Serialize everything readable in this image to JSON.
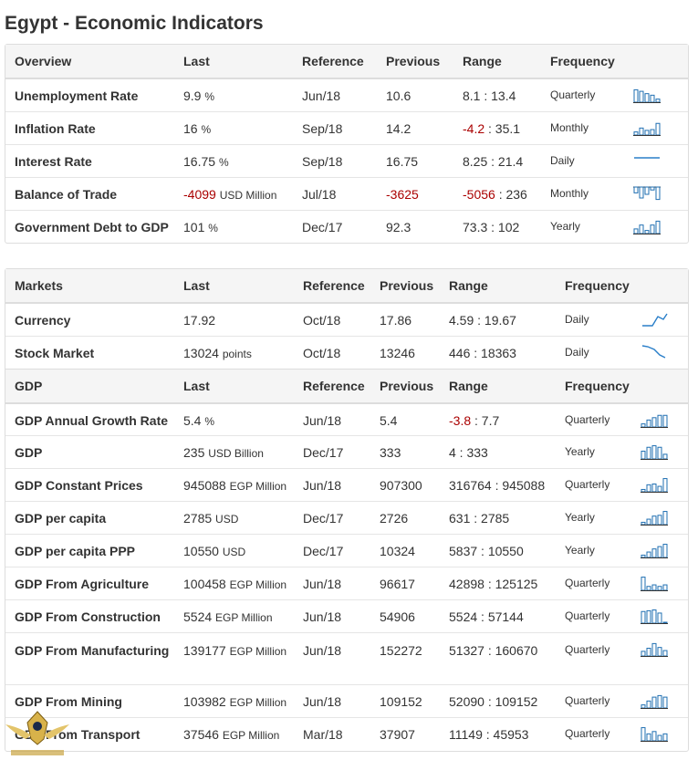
{
  "page_title": "Egypt - Economic Indicators",
  "overview": {
    "headers": {
      "c1": "Overview",
      "c2": "Last",
      "c3": "Reference",
      "c4": "Previous",
      "c5": "Range",
      "c6": "Frequency"
    },
    "rows": [
      {
        "name": "Unemployment Rate",
        "last": "9.9",
        "unit": "%",
        "ref": "Jun/18",
        "prev": "10.6",
        "range_low": "8.1",
        "range_high": "13.4",
        "freq": "Quarterly",
        "spark": "bars",
        "spark_values": [
          0.8,
          0.7,
          0.55,
          0.45,
          0.2
        ]
      },
      {
        "name": "Inflation Rate",
        "last": "16",
        "unit": "%",
        "ref": "Sep/18",
        "prev": "14.2",
        "range_low": "-4.2",
        "range_high": "35.1",
        "freq": "Monthly",
        "spark": "bars",
        "spark_values": [
          0.2,
          0.45,
          0.3,
          0.35,
          0.75
        ]
      },
      {
        "name": "Interest Rate",
        "last": "16.75",
        "unit": "%",
        "ref": "Sep/18",
        "prev": "16.75",
        "range_low": "8.25",
        "range_high": "21.4",
        "freq": "Daily",
        "spark": "flat"
      },
      {
        "name": "Balance of Trade",
        "last": "-4099",
        "last_neg": true,
        "unit": "USD Million",
        "ref": "Jul/18",
        "prev": "-3625",
        "prev_neg": true,
        "range_low": "-5056",
        "range_high": "236",
        "freq": "Monthly",
        "spark": "negbars",
        "spark_values": [
          0.4,
          0.75,
          0.5,
          0.2,
          0.85
        ]
      },
      {
        "name": "Government Debt to GDP",
        "last": "101",
        "unit": "%",
        "ref": "Dec/17",
        "prev": "92.3",
        "range_low": "73.3",
        "range_high": "102",
        "freq": "Yearly",
        "spark": "bars",
        "spark_values": [
          0.3,
          0.55,
          0.2,
          0.55,
          0.8
        ]
      }
    ]
  },
  "markets": {
    "headers": {
      "c1": "Markets",
      "c2": "Last",
      "c3": "Reference",
      "c4": "Previous",
      "c5": "Range",
      "c6": "Frequency"
    },
    "rows": [
      {
        "name": "Currency",
        "last": "17.92",
        "unit": "",
        "ref": "Oct/18",
        "prev": "17.86",
        "range_low": "4.59",
        "range_high": "19.67",
        "freq": "Daily",
        "spark": "up"
      },
      {
        "name": "Stock Market",
        "last": "13024",
        "unit": "points",
        "ref": "Oct/18",
        "prev": "13246",
        "range_low": "446",
        "range_high": "18363",
        "freq": "Daily",
        "spark": "down"
      }
    ]
  },
  "gdp": {
    "headers": {
      "c1": "GDP",
      "c2": "Last",
      "c3": "Reference",
      "c4": "Previous",
      "c5": "Range",
      "c6": "Frequency"
    },
    "rows": [
      {
        "name": "GDP Annual Growth Rate",
        "last": "5.4",
        "unit": "%",
        "ref": "Jun/18",
        "prev": "5.4",
        "range_low": "-3.8",
        "range_high": "7.7",
        "low_neg": true,
        "freq": "Quarterly",
        "spark": "bars",
        "spark_values": [
          0.2,
          0.45,
          0.6,
          0.75,
          0.75
        ]
      },
      {
        "name": "GDP",
        "last": "235",
        "unit": "USD Billion",
        "ref": "Dec/17",
        "prev": "333",
        "range_low": "4",
        "range_high": "333",
        "freq": "Yearly",
        "spark": "bars",
        "spark_values": [
          0.5,
          0.75,
          0.85,
          0.75,
          0.3
        ]
      },
      {
        "name": "GDP Constant Prices",
        "last": "945088",
        "unit": "EGP Million",
        "ref": "Jun/18",
        "prev": "907300",
        "range_low": "316764",
        "range_high": "945088",
        "freq": "Quarterly",
        "spark": "bars",
        "spark_values": [
          0.15,
          0.45,
          0.5,
          0.35,
          0.85
        ]
      },
      {
        "name": "GDP per capita",
        "last": "2785",
        "unit": "USD",
        "ref": "Dec/17",
        "prev": "2726",
        "range_low": "631",
        "range_high": "2785",
        "freq": "Yearly",
        "spark": "bars",
        "spark_values": [
          0.15,
          0.35,
          0.55,
          0.6,
          0.85
        ]
      },
      {
        "name": "GDP per capita PPP",
        "last": "10550",
        "unit": "USD",
        "ref": "Dec/17",
        "prev": "10324",
        "range_low": "5837",
        "range_high": "10550",
        "freq": "Yearly",
        "spark": "bars",
        "spark_values": [
          0.15,
          0.35,
          0.55,
          0.7,
          0.85
        ]
      },
      {
        "name": "GDP From Agriculture",
        "last": "100458",
        "unit": "EGP Million",
        "ref": "Jun/18",
        "prev": "96617",
        "range_low": "42898",
        "range_high": "125125",
        "freq": "Quarterly",
        "spark": "bars",
        "spark_values": [
          0.85,
          0.25,
          0.35,
          0.25,
          0.35
        ]
      },
      {
        "name": "GDP From Construction",
        "last": "5524",
        "unit": "EGP Million",
        "ref": "Jun/18",
        "prev": "54906",
        "range_low": "5524",
        "range_high": "57144",
        "freq": "Quarterly",
        "spark": "bars",
        "spark_values": [
          0.75,
          0.8,
          0.85,
          0.65,
          0.05
        ]
      },
      {
        "name": "GDP From Manufacturing",
        "last": "139177",
        "unit": "EGP Million",
        "ref": "Jun/18",
        "prev": "152272",
        "range_low": "51327",
        "range_high": "160670",
        "freq": "Quarterly",
        "spark": "bars",
        "spark_values": [
          0.3,
          0.5,
          0.8,
          0.55,
          0.35
        ]
      },
      {
        "name": "GDP From Mining",
        "last": "103982",
        "unit": "EGP Million",
        "ref": "Jun/18",
        "prev": "109152",
        "range_low": "52090",
        "range_high": "109152",
        "freq": "Quarterly",
        "spark": "bars",
        "spark_values": [
          0.2,
          0.45,
          0.7,
          0.8,
          0.7
        ]
      },
      {
        "name": "GDP From Transport",
        "last": "37546",
        "unit": "EGP Million",
        "ref": "Mar/18",
        "prev": "37907",
        "range_low": "11149",
        "range_high": "45953",
        "freq": "Quarterly",
        "spark": "bars",
        "spark_values": [
          0.85,
          0.45,
          0.6,
          0.35,
          0.45
        ]
      }
    ]
  }
}
